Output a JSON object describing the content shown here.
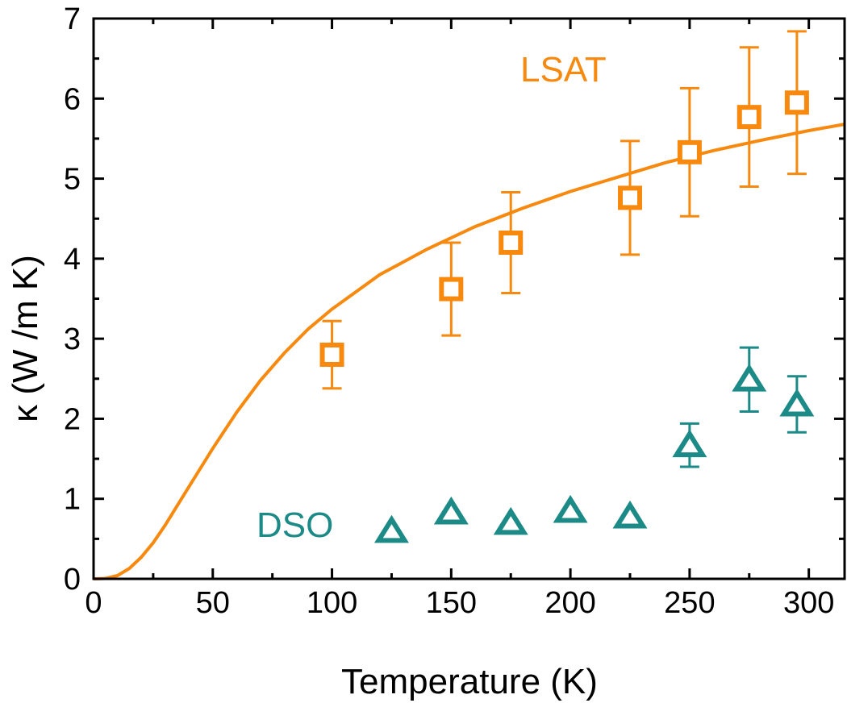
{
  "chart_data": {
    "type": "scatter",
    "xlabel": "Temperature (K)",
    "ylabel": "κ (W /m K)",
    "xlim": [
      0,
      315
    ],
    "ylim": [
      0,
      7
    ],
    "xticks": [
      "0",
      "50",
      "100",
      "150",
      "200",
      "250",
      "300"
    ],
    "yticks": [
      "0",
      "1",
      "2",
      "3",
      "4",
      "5",
      "6",
      "7"
    ],
    "grid": false,
    "series": [
      {
        "name": "LSAT",
        "color": "#F7890F",
        "marker": "square",
        "points": [
          {
            "x": 100,
            "y": 2.8,
            "err": 0.42
          },
          {
            "x": 150,
            "y": 3.62,
            "err": 0.58
          },
          {
            "x": 175,
            "y": 4.2,
            "err": 0.63
          },
          {
            "x": 225,
            "y": 4.76,
            "err": 0.71
          },
          {
            "x": 250,
            "y": 5.33,
            "err": 0.8
          },
          {
            "x": 275,
            "y": 5.77,
            "err": 0.87
          },
          {
            "x": 295,
            "y": 5.95,
            "err": 0.89
          }
        ],
        "fit_curve": [
          [
            0,
            0
          ],
          [
            5,
            0.005
          ],
          [
            10,
            0.04
          ],
          [
            15,
            0.13
          ],
          [
            20,
            0.27
          ],
          [
            25,
            0.45
          ],
          [
            30,
            0.67
          ],
          [
            40,
            1.15
          ],
          [
            50,
            1.63
          ],
          [
            60,
            2.08
          ],
          [
            70,
            2.48
          ],
          [
            80,
            2.82
          ],
          [
            90,
            3.12
          ],
          [
            100,
            3.37
          ],
          [
            120,
            3.8
          ],
          [
            140,
            4.12
          ],
          [
            160,
            4.4
          ],
          [
            180,
            4.63
          ],
          [
            200,
            4.84
          ],
          [
            220,
            5.02
          ],
          [
            240,
            5.2
          ],
          [
            260,
            5.35
          ],
          [
            280,
            5.48
          ],
          [
            300,
            5.6
          ],
          [
            315,
            5.68
          ]
        ]
      },
      {
        "name": "DSO",
        "color": "#1C8A87",
        "marker": "triangle",
        "points": [
          {
            "x": 125,
            "y": 0.6,
            "err": 0
          },
          {
            "x": 150,
            "y": 0.83,
            "err": 0
          },
          {
            "x": 175,
            "y": 0.7,
            "err": 0
          },
          {
            "x": 200,
            "y": 0.85,
            "err": 0
          },
          {
            "x": 225,
            "y": 0.78,
            "err": 0
          },
          {
            "x": 250,
            "y": 1.67,
            "err": 0.27
          },
          {
            "x": 275,
            "y": 2.49,
            "err": 0.4
          },
          {
            "x": 295,
            "y": 2.18,
            "err": 0.35
          }
        ]
      }
    ]
  }
}
